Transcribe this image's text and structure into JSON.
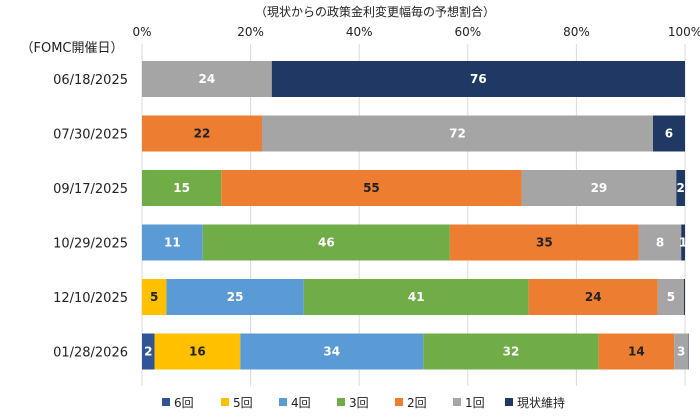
{
  "chart_data": {
    "type": "bar",
    "orientation": "horizontal-stacked-percent",
    "title": "（現状からの政策金利変更幅毎の予想割合）",
    "category_axis_label": "（FOMC開催日）",
    "x_ticks": [
      "0%",
      "20%",
      "40%",
      "60%",
      "80%",
      "100%"
    ],
    "xlim": [
      0,
      100
    ],
    "grid": true,
    "legend_position": "bottom",
    "categories": [
      "06/18/2025",
      "07/30/2025",
      "09/17/2025",
      "10/29/2025",
      "12/10/2025",
      "01/28/2026"
    ],
    "series": [
      {
        "name": "6回",
        "color": "#2F5597",
        "label_color": "#ffffff",
        "values": [
          0,
          0,
          0,
          0,
          0,
          2.3
        ]
      },
      {
        "name": "5回",
        "color": "#FFC000",
        "label_color": "#222222",
        "values": [
          0,
          0,
          0,
          0,
          4.5,
          15.8
        ]
      },
      {
        "name": "4回",
        "color": "#5B9BD5",
        "label_color": "#ffffff",
        "values": [
          0,
          0,
          0,
          11.2,
          25.3,
          33.7
        ]
      },
      {
        "name": "3回",
        "color": "#70AD47",
        "label_color": "#ffffff",
        "values": [
          0,
          0,
          14.6,
          45.5,
          41.4,
          32.3
        ]
      },
      {
        "name": "2回",
        "color": "#ED7D31",
        "label_color": "#222222",
        "values": [
          0,
          22.1,
          55.3,
          34.8,
          23.8,
          13.9
        ]
      },
      {
        "name": "1回",
        "color": "#A5A5A5",
        "label_color": "#ffffff",
        "values": [
          23.9,
          72.0,
          28.5,
          7.8,
          4.8,
          2.6
        ]
      },
      {
        "name": "現状維持",
        "color": "#203864",
        "label_color": "#ffffff",
        "values": [
          76.1,
          5.9,
          1.6,
          0.7,
          0.2,
          0.1
        ]
      }
    ],
    "data_labels": [
      [
        "",
        "",
        "",
        "",
        "",
        "24",
        "76"
      ],
      [
        "",
        "",
        "",
        "",
        "22",
        "72",
        "6"
      ],
      [
        "",
        "",
        "",
        "15",
        "55",
        "29",
        "2"
      ],
      [
        "",
        "",
        "11",
        "46",
        "35",
        "8",
        "1"
      ],
      [
        "",
        "5",
        "25",
        "41",
        "24",
        "5",
        ""
      ],
      [
        "2",
        "16",
        "34",
        "32",
        "14",
        "3",
        ""
      ]
    ]
  }
}
